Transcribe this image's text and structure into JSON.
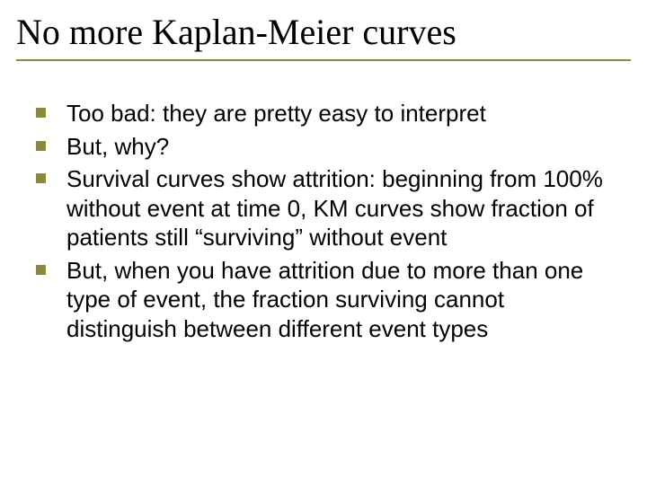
{
  "colors": {
    "background": "#ffffff",
    "title_text": "#000000",
    "body_text": "#000000",
    "rule": "#8a8a3a",
    "bullet": "#8a8a3a"
  },
  "typography": {
    "title_font": "Times New Roman",
    "title_size_pt": 40,
    "title_weight": "normal",
    "body_font": "Arial",
    "body_size_pt": 26,
    "body_weight": "normal"
  },
  "title": "No more Kaplan-Meier curves",
  "bullets": [
    "Too bad:  they are pretty easy to interpret",
    "But, why?",
    "Survival curves show attrition:  beginning from 100% without event at time 0, KM curves show fraction of patients still “surviving” without event",
    "But, when you have attrition due to more than one type of event, the fraction surviving cannot distinguish between different event types"
  ]
}
